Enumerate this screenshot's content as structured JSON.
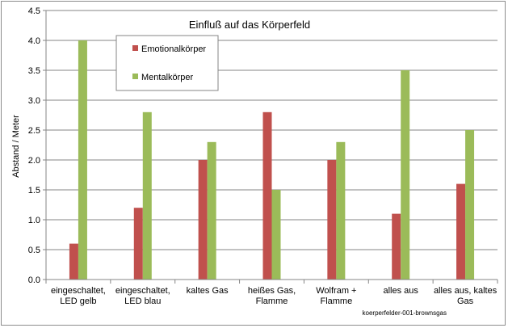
{
  "chart_data": {
    "type": "bar",
    "title": "Einfluß auf das Körperfeld",
    "ylabel": "Abstand / Meter",
    "xlabel": "",
    "ylim": [
      0,
      4.5
    ],
    "yticks": [
      "0.0",
      "0.5",
      "1.0",
      "1.5",
      "2.0",
      "2.5",
      "3.0",
      "3.5",
      "4.0",
      "4.5"
    ],
    "categories": [
      [
        "eingeschaltet,",
        "LED gelb"
      ],
      [
        "eingeschaltet,",
        "LED blau"
      ],
      [
        "kaltes Gas"
      ],
      [
        "heißes Gas,",
        "Flamme"
      ],
      [
        "Wolfram +",
        "Flamme"
      ],
      [
        "alles aus"
      ],
      [
        "alles aus, kaltes",
        "Gas"
      ]
    ],
    "series": [
      {
        "name": "Emotionalkörper",
        "color": "#c0504d",
        "values": [
          0.6,
          1.2,
          2.0,
          2.8,
          2.0,
          1.1,
          1.6
        ]
      },
      {
        "name": "Mentalkörper",
        "color": "#9bbb59",
        "values": [
          4.0,
          2.8,
          2.3,
          1.5,
          2.3,
          3.5,
          2.5
        ]
      }
    ],
    "grid": true,
    "legend": "top-left"
  },
  "source_note": "koerperfelder-001-brownsgas"
}
